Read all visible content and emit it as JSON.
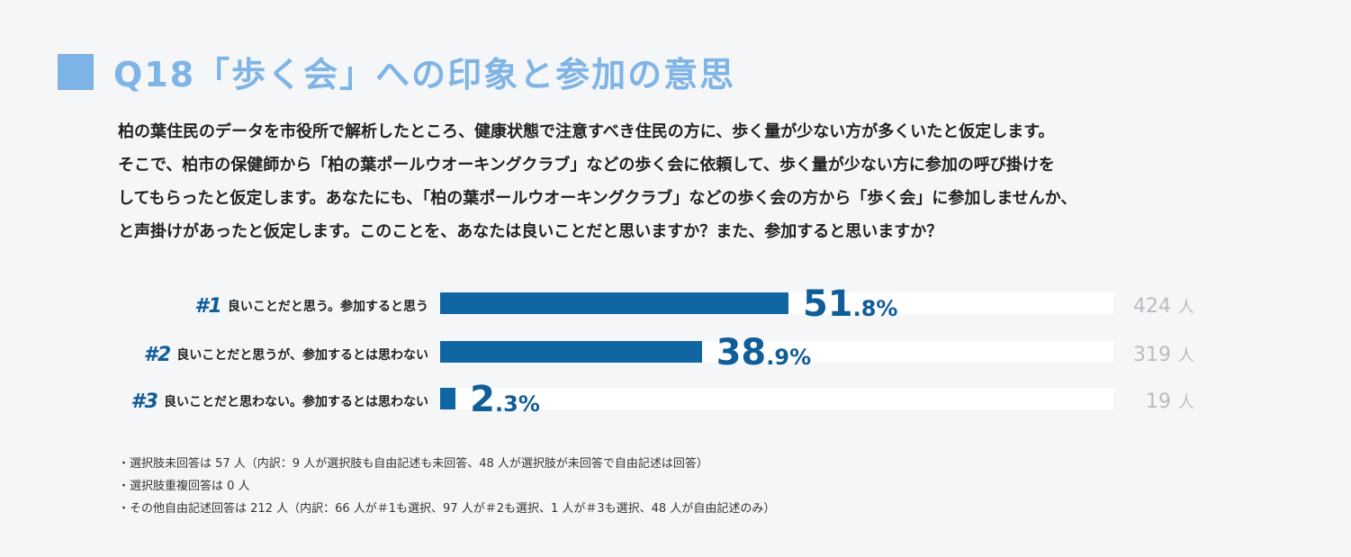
{
  "title": "Q18「歩く会」への印象と参加の意思",
  "question_lines": [
    "柏の葉住民のデータを市役所で解析したところ、健康状態で注意すべき住民の方に、歩く量が少ない方が多くいたと仮定します。",
    "そこで、柏市の保健師から「柏の葉ポールウオーキングクラブ」などの歩く会に依頼して、歩く量が少ない方に参加の呼び掛けを",
    "してもらったと仮定します。あなたにも、「柏の葉ポールウオーキングクラブ」などの歩く会の方から「歩く会」に参加しませんか、",
    "と声掛けがあったと仮定します。このことを、あなたは良いことだと思いますか？また、参加すると思いますか？"
  ],
  "chart_data": {
    "type": "bar",
    "orientation": "horizontal",
    "xlim": [
      0,
      100
    ],
    "unit": "%",
    "count_unit": "人",
    "rows": [
      {
        "rank": "#1",
        "label": "良いことだと思う。参加すると思う",
        "value": 51.8,
        "pct_int": "51",
        "pct_dec": ".8%",
        "count": "424"
      },
      {
        "rank": "#2",
        "label": "良いことだと思うが、参加するとは思わない",
        "value": 38.9,
        "pct_int": "38",
        "pct_dec": ".9%",
        "count": "319"
      },
      {
        "rank": "#3",
        "label": "良いことだと思わない。参加するとは思わない",
        "value": 2.3,
        "pct_int": "2",
        "pct_dec": ".3%",
        "count": "19"
      }
    ]
  },
  "colors": {
    "title": "#7fb4e6",
    "bar": "#1065a3",
    "track": "#ffffff",
    "rank_and_pct": "#0f5d99",
    "count": "#b9bcc2",
    "background": "#f5f6f8"
  },
  "notes": [
    "・選択肢未回答は 57 人（内訳：9 人が選択肢も自由記述も未回答、48 人が選択肢が未回答で自由記述は回答）",
    "・選択肢重複回答は 0 人",
    "・その他自由記述回答は 212 人（内訳：66 人が＃1も選択、97 人が＃2も選択、1 人が＃3も選択、48 人が自由記述のみ）"
  ]
}
